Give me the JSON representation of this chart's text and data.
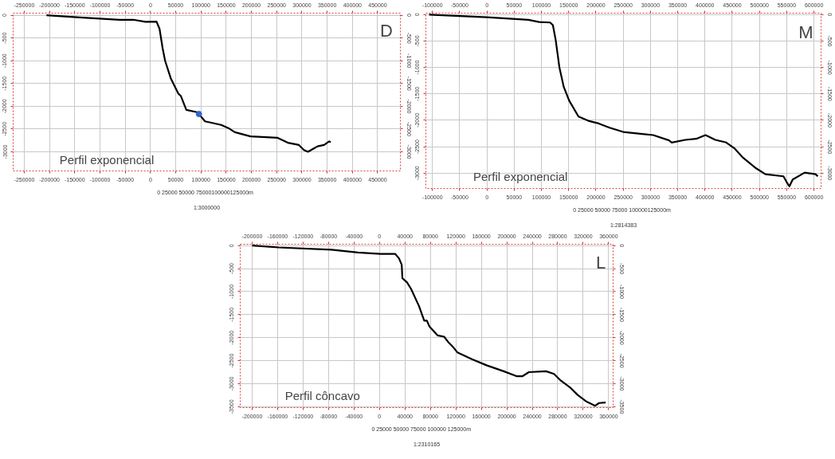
{
  "chart_data": [
    {
      "type": "line",
      "xlim": [
        -272000,
        495000
      ],
      "ylim": [
        -3420,
        45
      ],
      "x2lim": [
        -272000,
        495000
      ],
      "y2lim": [
        -3420,
        45
      ],
      "xticks": [
        -250000,
        -200000,
        -150000,
        -100000,
        -50000,
        0,
        50000,
        100000,
        150000,
        200000,
        250000,
        300000,
        350000,
        400000,
        450000
      ],
      "x2ticks": [
        -250000,
        -200000,
        -150000,
        -100000,
        -50000,
        0,
        50000,
        100000,
        150000,
        200000,
        250000,
        300000,
        350000,
        400000,
        450000
      ],
      "yticks": [
        0,
        -500,
        -1000,
        -1500,
        -2000,
        -2500,
        -3000
      ],
      "y2ticks": [
        0,
        -500,
        -1000,
        -1500,
        -2000,
        -2500,
        -3000
      ],
      "grid": true,
      "annotations": [
        "D",
        "Perfil exponencial",
        "0   25000 50000 75000100000125000m",
        "1:3000000"
      ],
      "series": [
        {
          "color": "#000000",
          "line_style": "solid",
          "x": [
            -206000,
            -140000,
            -61000,
            -34000,
            -10000,
            12000,
            18000,
            24000,
            29000,
            40000,
            55000,
            60000,
            71000,
            92000,
            96000,
            108000,
            140000,
            156000,
            167000,
            198000,
            251000,
            272000,
            294000,
            304000,
            312000,
            323000,
            331000,
            344000,
            354000,
            357000
          ],
          "values": [
            0,
            -50,
            -100,
            -100,
            -145,
            -140,
            -300,
            -720,
            -1000,
            -1380,
            -1720,
            -1770,
            -2080,
            -2130,
            -2170,
            -2330,
            -2410,
            -2490,
            -2570,
            -2660,
            -2690,
            -2800,
            -2850,
            -2960,
            -3000,
            -2930,
            -2880,
            -2850,
            -2770,
            -2790
          ]
        },
        {
          "type": "scatter",
          "color": "#3366cc",
          "marker": "circle",
          "x": [
            96000
          ],
          "values": [
            -2170
          ]
        }
      ]
    },
    {
      "type": "line",
      "xlim": [
        -112000,
        613000
      ],
      "ylim": [
        -3290,
        27
      ],
      "x2lim": [
        -112000,
        613000
      ],
      "y2lim": [
        -3290,
        27
      ],
      "xticks": [
        -100000,
        -50000,
        0,
        50000,
        100000,
        150000,
        200000,
        250000,
        300000,
        350000,
        400000,
        450000,
        500000,
        550000,
        600000
      ],
      "x2ticks": [
        -100000,
        -50000,
        0,
        50000,
        100000,
        150000,
        200000,
        250000,
        300000,
        350000,
        400000,
        450000,
        500000,
        550000,
        600000
      ],
      "yticks": [
        0,
        -500,
        -1000,
        -1500,
        -2000,
        -2500,
        -3000
      ],
      "y2ticks": [
        0,
        -500,
        -1000,
        -1500,
        -2000,
        -2500,
        -3000
      ],
      "grid": true,
      "annotations": [
        "M",
        "Perfil exponencial",
        "0   25000 50000 75000 100000125000m",
        "1:2814383"
      ],
      "series": [
        {
          "color": "#000000",
          "line_style": "solid",
          "x": [
            -106000,
            0,
            76000,
            96000,
            116000,
            121000,
            126000,
            133000,
            141000,
            151000,
            168000,
            186000,
            205000,
            225000,
            250000,
            285000,
            305000,
            334000,
            339000,
            364000,
            384000,
            401000,
            419000,
            439000,
            454000,
            469000,
            494000,
            511000,
            544000,
            550000,
            555000,
            561000,
            583000,
            603000,
            607000
          ],
          "values": [
            0,
            -50,
            -100,
            -140,
            -150,
            -200,
            -470,
            -1000,
            -1370,
            -1630,
            -1930,
            -2010,
            -2060,
            -2140,
            -2220,
            -2260,
            -2280,
            -2380,
            -2420,
            -2370,
            -2350,
            -2280,
            -2370,
            -2420,
            -2530,
            -2700,
            -2910,
            -3020,
            -3060,
            -3170,
            -3250,
            -3120,
            -2990,
            -3020,
            -3060
          ]
        }
      ]
    },
    {
      "type": "line",
      "xlim": [
        -218700,
        367000
      ],
      "ylim": [
        -3520,
        29
      ],
      "x2lim": [
        -218700,
        367000
      ],
      "y2lim": [
        -3520,
        29
      ],
      "xticks": [
        -200000,
        -160000,
        -120000,
        -80000,
        -40000,
        0,
        40000,
        80000,
        120000,
        160000,
        200000,
        240000,
        280000,
        320000,
        360000
      ],
      "x2ticks": [
        -200000,
        -160000,
        -120000,
        -80000,
        -40000,
        0,
        40000,
        80000,
        120000,
        160000,
        200000,
        240000,
        280000,
        320000,
        360000
      ],
      "yticks": [
        0,
        -500,
        -1000,
        -1500,
        -2000,
        -2500,
        -3000,
        -3500
      ],
      "y2ticks": [
        0,
        -500,
        -1000,
        -1500,
        -2000,
        -2500,
        -3000,
        -3500
      ],
      "grid": true,
      "annotations": [
        "L",
        "Perfil côncavo",
        "0    25000  50000  75000  100000  125000m",
        "1:2310165"
      ],
      "series": [
        {
          "color": "#000000",
          "line_style": "solid",
          "x": [
            -200000,
            -158400,
            -75200,
            -33600,
            1700,
            24600,
            30800,
            35000,
            36000,
            43300,
            49600,
            62000,
            70300,
            74500,
            78600,
            91100,
            101500,
            107700,
            116000,
            122400,
            145200,
            168100,
            195100,
            216000,
            224300,
            234700,
            261700,
            274200,
            284600,
            299200,
            311700,
            324200,
            338700,
            345000,
            355400
          ],
          "values": [
            0,
            -40,
            -90,
            -150,
            -180,
            -180,
            -280,
            -420,
            -710,
            -800,
            -940,
            -1310,
            -1630,
            -1630,
            -1760,
            -1950,
            -1980,
            -2090,
            -2210,
            -2320,
            -2470,
            -2600,
            -2730,
            -2840,
            -2840,
            -2750,
            -2730,
            -2790,
            -2930,
            -3080,
            -3250,
            -3380,
            -3480,
            -3420,
            -3410
          ]
        }
      ]
    }
  ]
}
